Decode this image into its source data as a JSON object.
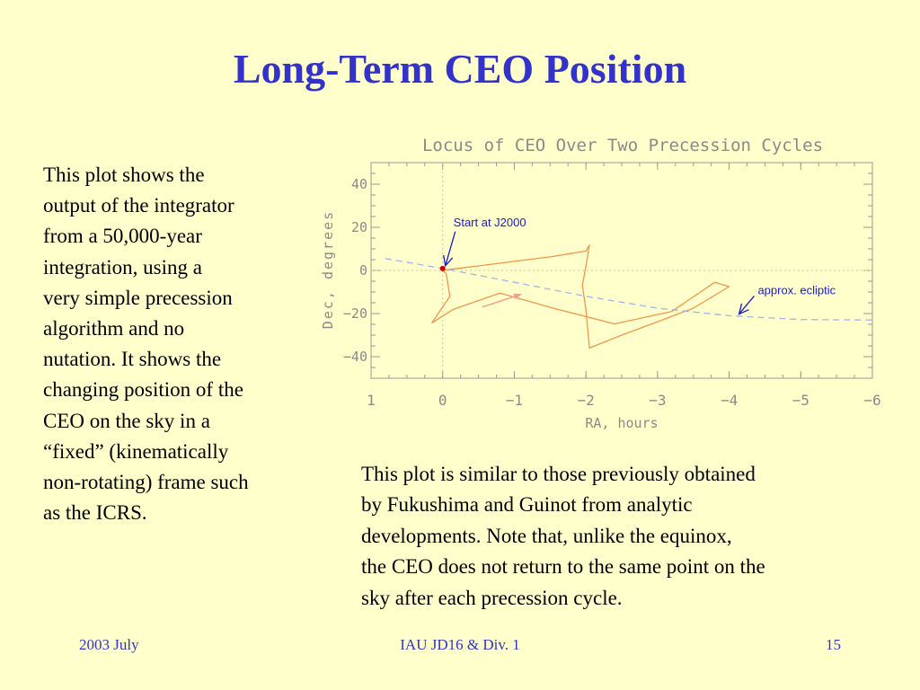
{
  "slide": {
    "title": "Long-Term CEO Position",
    "left_text_lines": [
      "This plot shows the",
      "output of the integrator",
      "from a 50,000-year",
      "integration,  using a",
      "very simple precession",
      "algorithm and no",
      "nutation.  It shows the",
      "changing position of the",
      "CEO on the sky in a",
      "“fixed” (kinematically",
      "non-rotating) frame such",
      "as the ICRS."
    ],
    "bottom_text_lines": [
      "This plot is similar to those previously obtained",
      "by Fukushima and Guinot from analytic",
      "developments.  Note that, unlike the equinox,",
      "the CEO does not return to the same point on the",
      "sky after each precession cycle."
    ]
  },
  "footer": {
    "left": "2003 July",
    "center": "IAU JD16 & Div. 1",
    "right": "15"
  },
  "colors": {
    "title": "#3333cc",
    "background": "#ffffcc",
    "locus": "#f0964b",
    "ecliptic": "#a0b4e6",
    "annotation": "#1a1ad2",
    "start_marker": "#cc0000",
    "axis": "#9a9a9a"
  },
  "chart_data": {
    "type": "line",
    "title": "Locus of CEO Over Two Precession Cycles",
    "xlabel": "RA, hours",
    "ylabel": "Dec, degrees",
    "xlim": [
      1,
      -6
    ],
    "ylim": [
      -50,
      50
    ],
    "xticks": [
      "1",
      "0",
      "−1",
      "−2",
      "−3",
      "−4",
      "−5",
      "−6"
    ],
    "yticks": [
      "40",
      "20",
      "0",
      "−20",
      "−40"
    ],
    "grid": false,
    "series": [
      {
        "kind": "locus",
        "points": [
          [
            0,
            0
          ],
          [
            -0.1,
            0.5
          ],
          [
            -0.5,
            2.1
          ],
          [
            -1.0,
            4.2
          ],
          [
            -1.5,
            6.3
          ],
          [
            -2.0,
            9.0
          ],
          [
            -2.05,
            11.8
          ],
          [
            -2.0,
            2.0
          ],
          [
            -1.95,
            -7.0
          ],
          [
            -2.0,
            -18.0
          ],
          [
            -2.05,
            -36.0
          ],
          [
            -2.5,
            -30.0
          ],
          [
            -3.0,
            -23.8
          ],
          [
            -3.5,
            -17.5
          ],
          [
            -4.0,
            -7.5
          ],
          [
            -3.8,
            -5.5
          ],
          [
            -3.2,
            -19.0
          ],
          [
            -2.4,
            -24.8
          ],
          [
            -1.6,
            -18.0
          ],
          [
            -0.8,
            -10.5
          ],
          [
            -0.15,
            -18.0
          ],
          [
            0.15,
            -24.3
          ],
          [
            -0.1,
            -12.0
          ],
          [
            -0.05,
            -1.5
          ],
          [
            0,
            0
          ]
        ]
      },
      {
        "kind": "ecliptic",
        "name": "approx. ecliptic",
        "points": [
          [
            0.8,
            5.5
          ],
          [
            0,
            0.9
          ],
          [
            -1,
            -5.5
          ],
          [
            -2,
            -12.0
          ],
          [
            -3,
            -17.5
          ],
          [
            -4,
            -21.0
          ],
          [
            -5,
            -22.8
          ],
          [
            -6,
            -23.0
          ]
        ]
      }
    ],
    "start_point": [
      0,
      0.9
    ],
    "motion_arrow": {
      "from": [
        -0.55,
        -17.0
      ],
      "to": [
        -1.1,
        -11.0
      ]
    },
    "annotations": [
      {
        "text": "Start at J2000",
        "at": [
          0,
          0.9
        ],
        "text_pos": [
          -0.15,
          20.5
        ]
      },
      {
        "text": "approx. ecliptic",
        "at": [
          -4.1,
          -21.5
        ],
        "text_pos": [
          -4.4,
          -11.0
        ]
      }
    ]
  }
}
